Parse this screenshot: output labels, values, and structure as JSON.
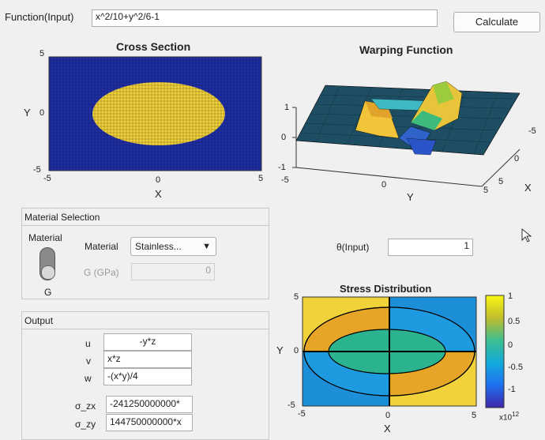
{
  "function_row": {
    "label": "Function(Input)",
    "value": "x^2/10+y^2/6-1",
    "calculate_label": "Calculate"
  },
  "cross_section": {
    "title": "Cross Section",
    "ylabel": "Y",
    "xlabel": "X",
    "xticks": [
      "-5",
      "0",
      "5"
    ],
    "yticks": [
      "5",
      "0",
      "-5"
    ]
  },
  "warping": {
    "title": "Warping Function",
    "zticks": [
      "1",
      "0",
      "-1"
    ],
    "yticks": [
      "-5",
      "0",
      "5"
    ],
    "xticks": [
      "5",
      "0",
      "-5"
    ],
    "ylabel": "Y",
    "xlabel": "X"
  },
  "material_panel": {
    "title": "Material Selection",
    "switch_label": "Material",
    "switch_state": "G",
    "material_label": "Material",
    "material_value": "Stainless...",
    "g_label": "G (GPa)",
    "g_value": "0"
  },
  "theta": {
    "label": "θ(Input)",
    "value": "1"
  },
  "output_panel": {
    "title": "Output",
    "rows": [
      {
        "label": "u",
        "value": "-y*z"
      },
      {
        "label": "v",
        "value": "x*z"
      },
      {
        "label": "w",
        "value": "-(x*y)/4"
      }
    ],
    "stress": [
      {
        "label": "σ_zx",
        "value": "-241250000000*"
      },
      {
        "label": "σ_zy",
        "value": "144750000000*x"
      }
    ]
  },
  "stress_plot": {
    "title": "Stress Distribution",
    "ylabel": "Y",
    "xlabel": "X",
    "xticks": [
      "-5",
      "0",
      "5"
    ],
    "yticks": [
      "5",
      "0",
      "-5"
    ],
    "colorbar_ticks": [
      "1",
      "0.5",
      "0",
      "-0.5",
      "-1"
    ],
    "colorbar_exponent": "x10",
    "colorbar_exponent_power": "12"
  },
  "colors": {
    "blue": "#1f2fa8",
    "yellow": "#f2d23a",
    "panel_border": "#c8c8c8"
  }
}
